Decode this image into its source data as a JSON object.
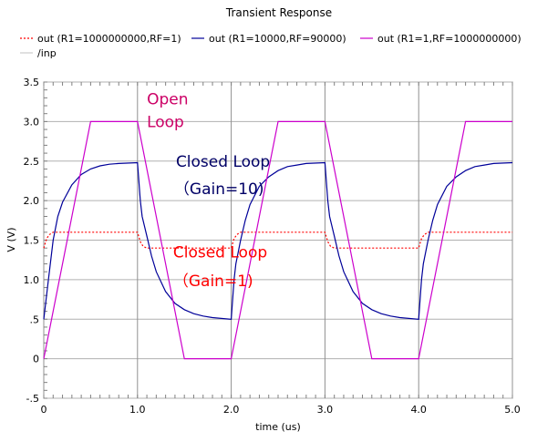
{
  "chart_data": {
    "type": "line",
    "title": "Transient Response",
    "xlabel": "time (us)",
    "ylabel": "V (V)",
    "xlim": [
      0,
      5
    ],
    "ylim": [
      -0.5,
      3.5
    ],
    "xticks": [
      0,
      1,
      2,
      3,
      4,
      5
    ],
    "xtick_labels": [
      "0",
      "1.0",
      "2.0",
      "3.0",
      "4.0",
      "5.0"
    ],
    "yticks": [
      -0.5,
      0,
      0.5,
      1.0,
      1.5,
      2.0,
      2.5,
      3.0,
      3.5
    ],
    "ytick_labels": [
      "-.5",
      "0",
      ".5",
      "1.0",
      "1.5",
      "2.0",
      "2.5",
      "3.0",
      "3.5"
    ],
    "grid": true,
    "legend_position": "top",
    "series": [
      {
        "name": "out (R1=1000000000,RF=1)",
        "color": "#ff0000",
        "dash": "dotted",
        "x": [
          0,
          0.03,
          0.06,
          0.1,
          1.0,
          1.03,
          1.06,
          1.1,
          2.0,
          2.03,
          2.06,
          2.1,
          3.0,
          3.03,
          3.06,
          3.1,
          4.0,
          4.03,
          4.06,
          4.1,
          5.0
        ],
        "y": [
          1.4,
          1.52,
          1.57,
          1.6,
          1.6,
          1.48,
          1.42,
          1.4,
          1.4,
          1.52,
          1.57,
          1.6,
          1.6,
          1.48,
          1.42,
          1.4,
          1.4,
          1.52,
          1.57,
          1.6,
          1.6
        ]
      },
      {
        "name": "out (R1=10000,RF=90000)",
        "color": "#000099",
        "dash": "solid",
        "x": [
          0,
          0.05,
          0.1,
          0.15,
          0.2,
          0.3,
          0.4,
          0.5,
          0.6,
          0.7,
          0.8,
          1.0,
          1.03,
          1.05,
          1.1,
          1.15,
          1.2,
          1.3,
          1.4,
          1.5,
          1.6,
          1.7,
          1.8,
          2.0,
          2.03,
          2.05,
          2.1,
          2.15,
          2.2,
          2.3,
          2.4,
          2.5,
          2.6,
          2.7,
          2.8,
          3.0,
          3.03,
          3.05,
          3.1,
          3.15,
          3.2,
          3.3,
          3.4,
          3.5,
          3.6,
          3.7,
          3.8,
          4.0,
          4.03,
          4.05,
          4.1,
          4.15,
          4.2,
          4.3,
          4.4,
          4.5,
          4.6,
          4.7,
          4.8,
          5.0
        ],
        "y": [
          0.5,
          1.0,
          1.5,
          1.8,
          1.98,
          2.2,
          2.33,
          2.4,
          2.44,
          2.46,
          2.47,
          2.48,
          2.0,
          1.8,
          1.55,
          1.3,
          1.1,
          0.85,
          0.7,
          0.62,
          0.57,
          0.54,
          0.52,
          0.5,
          1.0,
          1.2,
          1.5,
          1.75,
          1.95,
          2.18,
          2.3,
          2.38,
          2.43,
          2.45,
          2.47,
          2.48,
          2.0,
          1.8,
          1.55,
          1.3,
          1.1,
          0.85,
          0.7,
          0.62,
          0.57,
          0.54,
          0.52,
          0.5,
          1.0,
          1.2,
          1.5,
          1.75,
          1.95,
          2.18,
          2.3,
          2.38,
          2.43,
          2.45,
          2.47,
          2.48
        ]
      },
      {
        "name": "out (R1=1,RF=1000000000)",
        "color": "#cc00cc",
        "dash": "solid",
        "x": [
          0,
          0.5,
          1.0,
          1.5,
          2.0,
          2.5,
          3.0,
          3.5,
          4.0,
          4.5,
          5.0
        ],
        "y": [
          0,
          3.0,
          3.0,
          0,
          0,
          3.0,
          3.0,
          0,
          0,
          3.0,
          3.0
        ]
      },
      {
        "name": "/inp",
        "color": "#cccccc",
        "dash": "solid",
        "x": [],
        "y": []
      }
    ],
    "annotations": [
      {
        "text": "Open",
        "color": "#cc0066",
        "x": 1.1,
        "y": 3.22
      },
      {
        "text": "Loop",
        "color": "#cc0066",
        "x": 1.1,
        "y": 2.93
      },
      {
        "text": "Closed Loop",
        "color": "#000066",
        "x": 1.41,
        "y": 2.43
      },
      {
        "text": "（Gain=10)",
        "color": "#000066",
        "x": 1.39,
        "y": 2.08
      },
      {
        "text": "Closed Loop",
        "color": "#ff0000",
        "x": 1.38,
        "y": 1.28
      },
      {
        "text": "（Gain=1)",
        "color": "#ff0000",
        "x": 1.38,
        "y": 0.92
      }
    ]
  }
}
